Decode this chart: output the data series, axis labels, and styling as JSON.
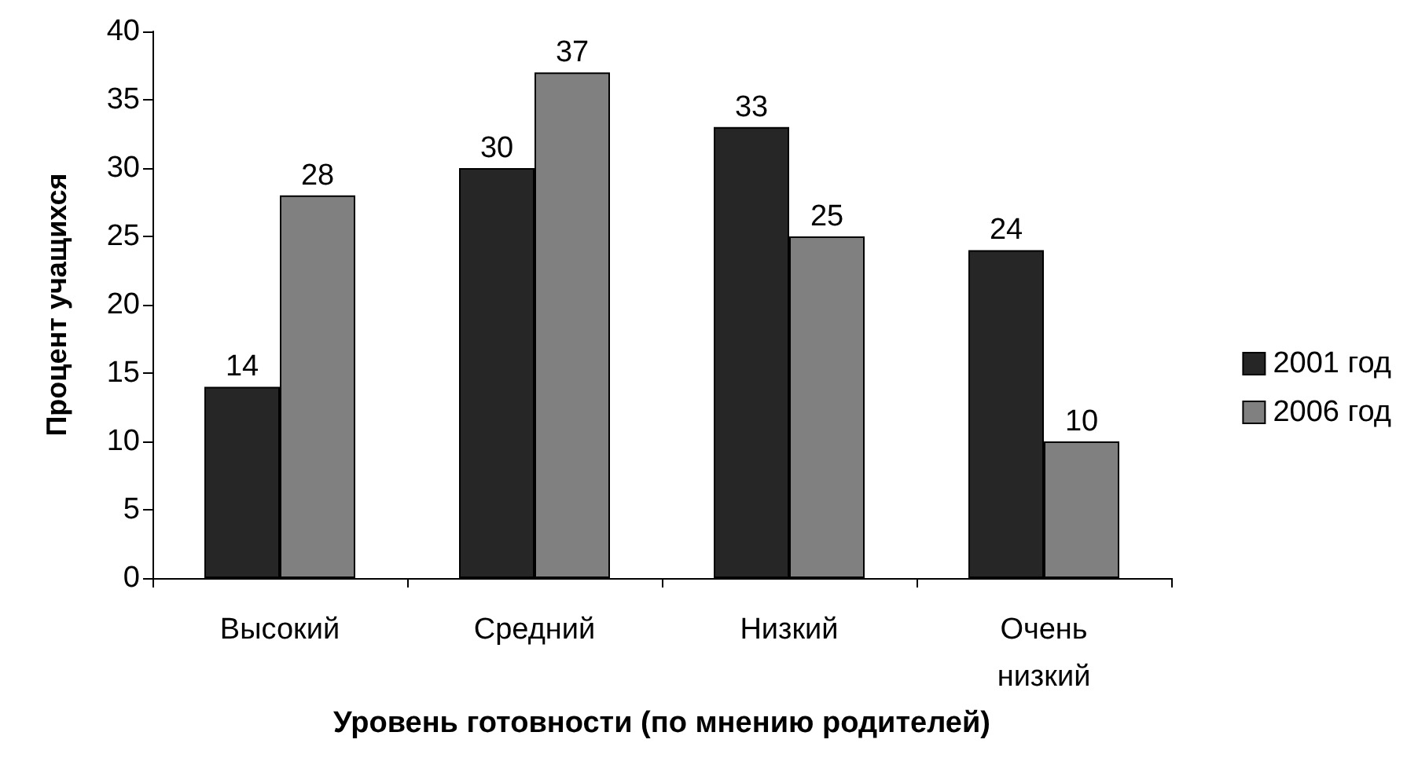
{
  "chart_data": {
    "type": "bar",
    "xlabel": "Уровень готовности (по мнению родителей)",
    "ylabel": "Процент учащихся",
    "categories": [
      "Высокий",
      "Средний",
      "Низкий",
      "Очень низкий"
    ],
    "series": [
      {
        "name": "2001 год",
        "color": "#262626",
        "values": [
          14,
          30,
          33,
          24
        ]
      },
      {
        "name": "2006 год",
        "color": "#808080",
        "values": [
          28,
          37,
          25,
          10
        ]
      }
    ],
    "ylim": [
      0,
      40
    ],
    "yticks": [
      0,
      5,
      10,
      15,
      20,
      25,
      30,
      35,
      40
    ],
    "grid": false,
    "legend": "right",
    "data_labels": true
  }
}
